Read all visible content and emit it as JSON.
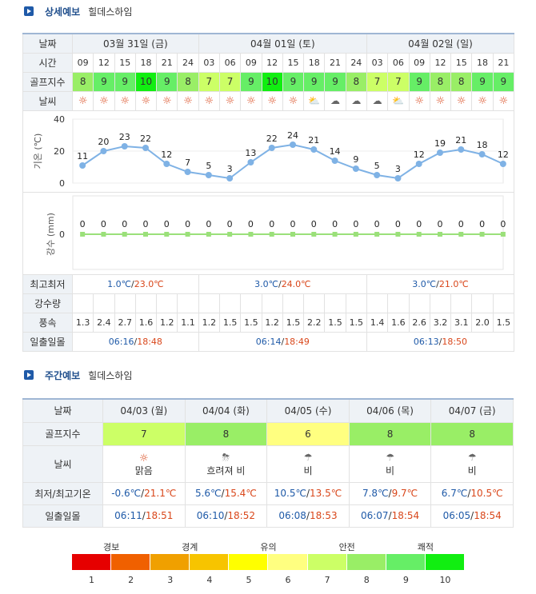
{
  "detail": {
    "title": "상세예보",
    "place": "힐데스하임",
    "row_labels": {
      "date": "날짜",
      "time": "시간",
      "golf": "골프지수",
      "weather": "날씨",
      "temp": "기온 (℃)",
      "rain": "강수 (mm)",
      "minmax": "최고최저",
      "precip": "강수량",
      "wind": "풍속",
      "sun": "일출일몰"
    },
    "days": [
      {
        "label": "03월 31일 (금)",
        "min": "1.0℃",
        "max": "23.0℃",
        "sunrise": "06:16",
        "sunset": "18:48"
      },
      {
        "label": "04월 01일 (토)",
        "min": "3.0℃",
        "max": "24.0℃",
        "sunrise": "06:14",
        "sunset": "18:49"
      },
      {
        "label": "04월 02일 (일)",
        "min": "3.0℃",
        "max": "21.0℃",
        "sunrise": "06:13",
        "sunset": "18:50"
      }
    ],
    "hours": [
      "09",
      "12",
      "15",
      "18",
      "21",
      "24",
      "03",
      "06",
      "09",
      "12",
      "15",
      "18",
      "21",
      "24",
      "03",
      "06",
      "09",
      "12",
      "15",
      "18",
      "21"
    ],
    "golf": [
      8,
      9,
      9,
      10,
      9,
      8,
      7,
      7,
      9,
      10,
      9,
      9,
      9,
      8,
      7,
      7,
      9,
      8,
      8,
      9,
      9
    ],
    "weather_icons": [
      "sun-icon",
      "sun-icon",
      "sun-icon",
      "sun-icon",
      "sun-icon",
      "sun-icon",
      "sun-icon",
      "sun-icon",
      "sun-icon",
      "sun-icon",
      "sun-icon",
      "cloud-sun-icon",
      "cloud-icon",
      "cloud-icon",
      "cloud-icon",
      "partly-sunny-icon",
      "sun-icon",
      "sun-icon",
      "sun-icon",
      "sun-icon",
      "sun-icon"
    ],
    "wind": [
      "1.3",
      "2.4",
      "2.7",
      "1.6",
      "1.2",
      "1.1",
      "1.2",
      "1.5",
      "1.5",
      "1.2",
      "1.5",
      "2.2",
      "1.5",
      "1.5",
      "1.4",
      "1.6",
      "2.6",
      "3.2",
      "3.1",
      "2.0",
      "1.5"
    ]
  },
  "chart_data": [
    {
      "type": "line",
      "ylabel": "기온 (℃)",
      "ylim": [
        0,
        40
      ],
      "yticks": [
        "40",
        "20",
        "0"
      ],
      "values": [
        11,
        20,
        23,
        22,
        12,
        7,
        5,
        3,
        13,
        22,
        24,
        21,
        14,
        9,
        5,
        3,
        12,
        19,
        21,
        18,
        12
      ]
    },
    {
      "type": "line",
      "ylabel": "강수 (mm)",
      "yticks": [
        "0"
      ],
      "values": [
        0,
        0,
        0,
        0,
        0,
        0,
        0,
        0,
        0,
        0,
        0,
        0,
        0,
        0,
        0,
        0,
        0,
        0,
        0,
        0,
        0
      ]
    }
  ],
  "weekly": {
    "title": "주간예보",
    "place": "힐데스하임",
    "row_labels": {
      "date": "날짜",
      "golf": "골프지수",
      "weather": "날씨",
      "minmax": "최저/최고기온",
      "sun": "일출일몰"
    },
    "days": [
      {
        "date": "04/03 (월)",
        "golf": "7",
        "icon": "sun-icon",
        "desc": "맑음",
        "min": "-0.6℃",
        "max": "21.1℃",
        "sunrise": "06:11",
        "sunset": "18:51",
        "color": "#ccff66"
      },
      {
        "date": "04/04 (화)",
        "golf": "8",
        "icon": "cloud-rain-sun-icon",
        "desc": "흐려져 비",
        "min": "5.6℃",
        "max": "15.4℃",
        "sunrise": "06:10",
        "sunset": "18:52",
        "color": "#99ee66"
      },
      {
        "date": "04/05 (수)",
        "golf": "6",
        "icon": "rain-icon",
        "desc": "비",
        "min": "10.5℃",
        "max": "13.5℃",
        "sunrise": "06:08",
        "sunset": "18:53",
        "color": "#ffff80"
      },
      {
        "date": "04/06 (목)",
        "golf": "8",
        "icon": "rain-icon",
        "desc": "비",
        "min": "7.8℃",
        "max": "9.7℃",
        "sunrise": "06:07",
        "sunset": "18:54",
        "color": "#99ee66"
      },
      {
        "date": "04/07 (금)",
        "golf": "8",
        "icon": "rain-icon",
        "desc": "비",
        "min": "6.7℃",
        "max": "10.5℃",
        "sunrise": "06:05",
        "sunset": "18:54",
        "color": "#99ee66"
      }
    ]
  },
  "legend": {
    "labels": [
      "경보",
      "경계",
      "유의",
      "안전",
      "쾌적"
    ],
    "numbers": [
      "1",
      "2",
      "3",
      "4",
      "5",
      "6",
      "7",
      "8",
      "9",
      "10"
    ],
    "colors": [
      "#e60000",
      "#f06000",
      "#f0a000",
      "#f7c400",
      "#ffff00",
      "#ffff80",
      "#ccff66",
      "#99ee66",
      "#66ee66",
      "#11ee11"
    ]
  }
}
